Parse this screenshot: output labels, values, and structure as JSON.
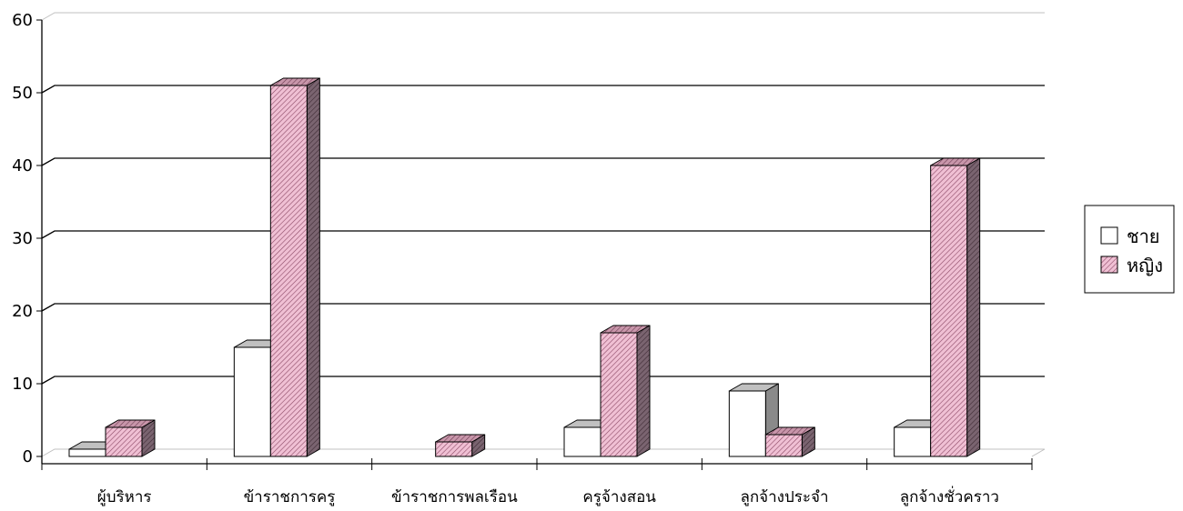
{
  "chart_data": {
    "type": "bar",
    "three_d": true,
    "categories": [
      "ผู้บริหาร",
      "ข้าราชการครู",
      "ข้าราชการพลเรือน",
      "ครูจ้างสอน",
      "ลูกจ้างประจำ",
      "ลูกจ้างชั่วคราว"
    ],
    "series": [
      {
        "name": "ชาย",
        "values": [
          1,
          15,
          0,
          4,
          9,
          4
        ],
        "color": "#ffffff"
      },
      {
        "name": "หญิง",
        "values": [
          4,
          51,
          2,
          17,
          3,
          40
        ],
        "color": "#f0c0d4"
      }
    ],
    "ylim": [
      0,
      60
    ],
    "yticks": [
      0,
      10,
      20,
      30,
      40,
      50,
      60
    ],
    "grid": true,
    "legend": "right"
  }
}
